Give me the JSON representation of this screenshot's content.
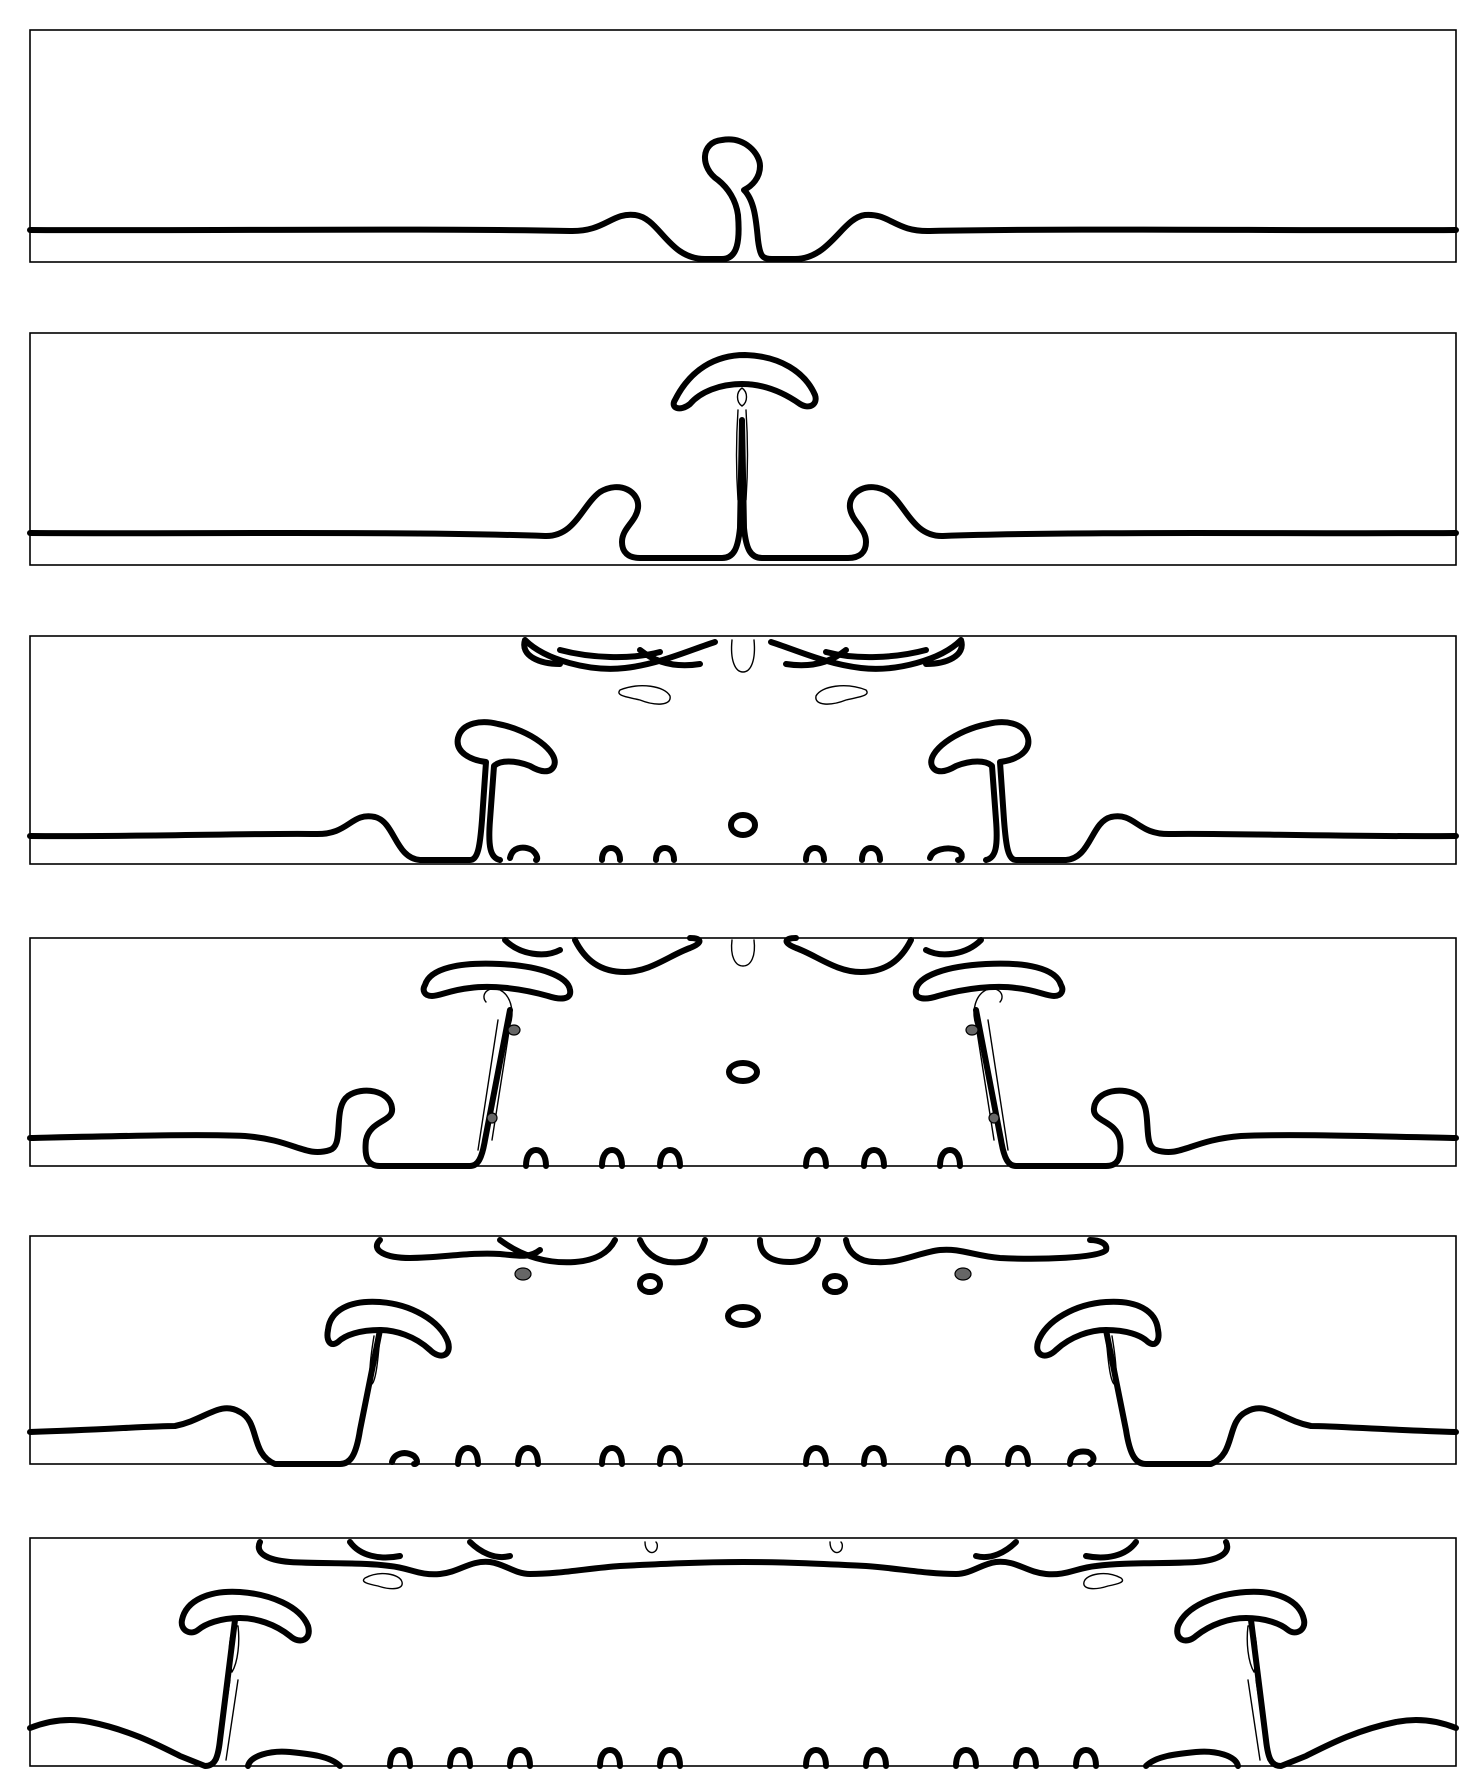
{
  "figure": {
    "panel_count": 6,
    "line_color": "#000000",
    "background_color": "#ffffff",
    "panels": [
      {
        "index": 1
      },
      {
        "index": 2
      },
      {
        "index": 3
      },
      {
        "index": 4
      },
      {
        "index": 5
      },
      {
        "index": 6
      }
    ]
  }
}
